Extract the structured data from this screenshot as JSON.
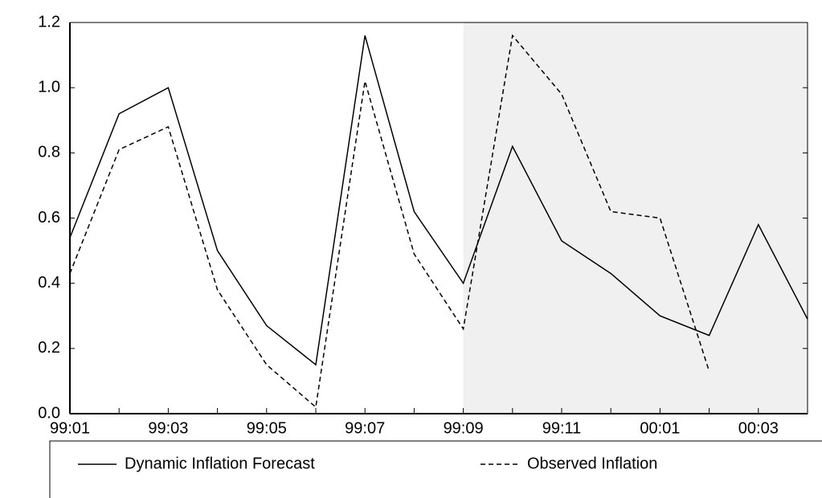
{
  "chart_data": {
    "type": "line",
    "categories": [
      "99:01",
      null,
      "99:03",
      null,
      "99:05",
      null,
      "99:07",
      null,
      "99:09",
      null,
      "99:11",
      null,
      "00:01",
      null,
      "00:03",
      null
    ],
    "series": [
      {
        "name": "Dynamic Inflation Forecast",
        "color": "#000000",
        "dash": "solid",
        "values": [
          0.54,
          0.92,
          1.0,
          0.5,
          0.27,
          0.15,
          1.16,
          0.62,
          0.4,
          0.82,
          0.53,
          0.43,
          0.3,
          0.24,
          0.58,
          0.29
        ]
      },
      {
        "name": "Observed Inflation",
        "color": "#000000",
        "dash": "dashed",
        "values": [
          0.43,
          0.81,
          0.88,
          0.38,
          0.15,
          0.02,
          1.02,
          0.49,
          0.26,
          1.16,
          0.98,
          0.62,
          0.6,
          0.13,
          null,
          null
        ]
      }
    ],
    "ylim": [
      0,
      1.2
    ],
    "yticks": [
      {
        "value": 0,
        "label": "0.0"
      },
      0.2,
      0.4,
      0.6,
      0.8,
      {
        "value": 1,
        "label": "1.0"
      },
      1.2
    ],
    "shaded_region": {
      "start": "99:09",
      "color": "#f0f0f0"
    },
    "legend": "bottom"
  }
}
